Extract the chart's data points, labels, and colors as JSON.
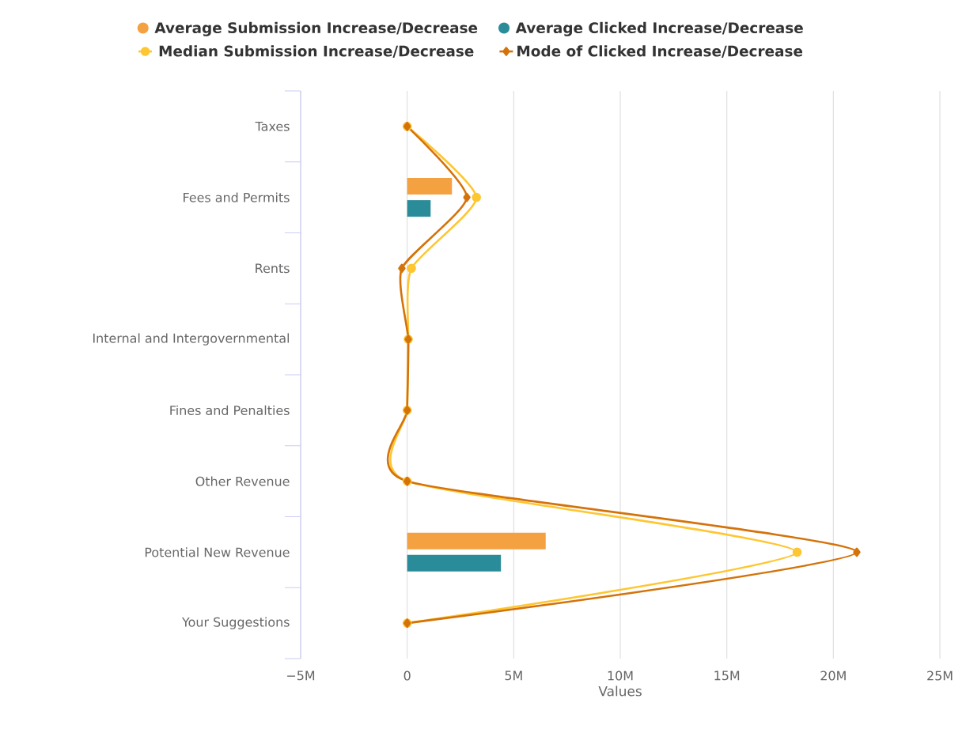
{
  "chart_data": {
    "type": "bar",
    "orientation": "horizontal",
    "xlabel": "Values",
    "categories": [
      "Taxes",
      "Fees and Permits",
      "Rents",
      "Internal and Intergovernmental",
      "Fines and Penalties",
      "Other Revenue",
      "Potential New Revenue",
      "Your Suggestions"
    ],
    "series": [
      {
        "name": "Average Submission Increase/Decrease",
        "color": "#f4a142",
        "values": [
          0,
          2100000,
          0,
          0,
          0,
          0,
          6500000,
          0
        ]
      },
      {
        "name": "Average Clicked Increase/Decrease",
        "color": "#2b8c99",
        "values": [
          0,
          1100000,
          0,
          0,
          0,
          0,
          4400000,
          0
        ]
      },
      {
        "name": "Median Submission Increase/Decrease",
        "type": "line",
        "color": "#fec631",
        "marker": "circle",
        "values": [
          0,
          3250000,
          200000,
          50000,
          0,
          0,
          18300000,
          0
        ]
      },
      {
        "name": "Mode of Clicked Increase/Decrease",
        "type": "line",
        "color": "#d4730a",
        "marker": "diamond",
        "values": [
          0,
          2800000,
          -250000,
          50000,
          0,
          0,
          21100000,
          0
        ]
      }
    ],
    "xlim": [
      -5000000,
      25000000
    ],
    "xticks": [
      {
        "value": -5000000,
        "label": "−5M"
      },
      0,
      {
        "value": 5000000,
        "label": "5M"
      },
      {
        "value": 10000000,
        "label": "10M"
      },
      {
        "value": 15000000,
        "label": "15M"
      },
      {
        "value": 20000000,
        "label": "20M"
      },
      {
        "value": 25000000,
        "label": "25M"
      }
    ],
    "grid": "x",
    "legend": "top"
  }
}
